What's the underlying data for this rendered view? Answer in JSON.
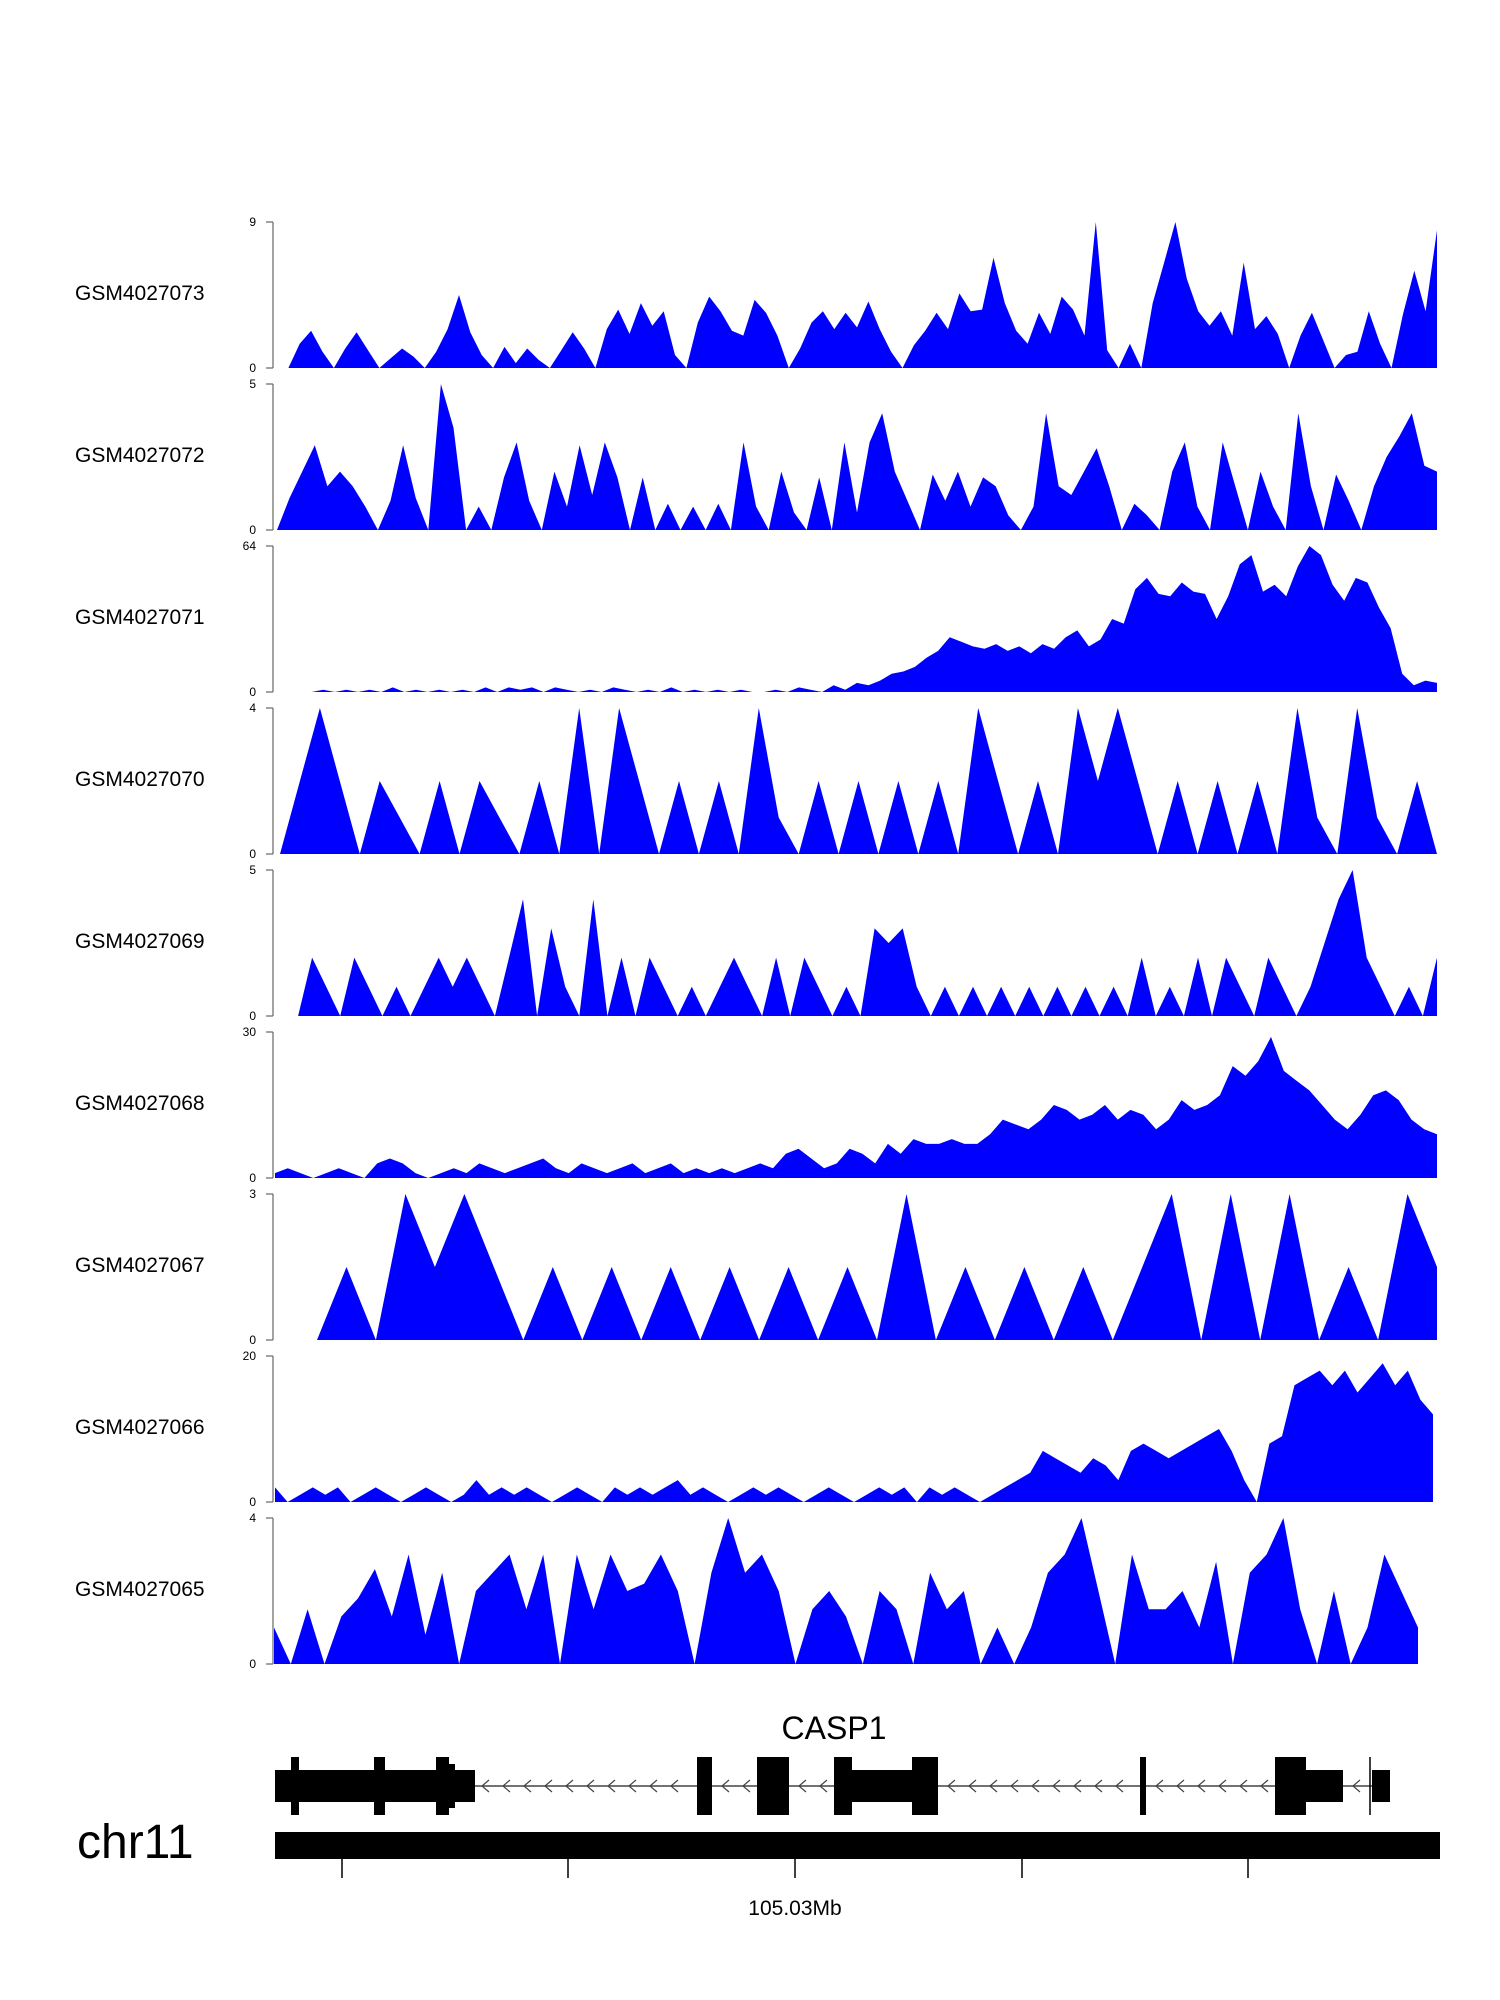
{
  "chart_data": {
    "type": "area",
    "color": "#0000ff",
    "chromosome": "chr11",
    "gene": {
      "name": "CASP1",
      "strand": "-"
    },
    "coordinate_label": "105.03Mb",
    "tracks": [
      {
        "name": "GSM4027073",
        "ymax": 9,
        "ymin": 0,
        "ymax_label": "9",
        "ymin_label": "0",
        "values": [
          0,
          0,
          1.5,
          2.3,
          1.0,
          0,
          1.2,
          2.2,
          1.1,
          0,
          0.6,
          1.2,
          0.7,
          0,
          1.0,
          2.4,
          4.5,
          2.2,
          0.8,
          0,
          1.3,
          0.3,
          1.2,
          0.5,
          0,
          1.1,
          2.2,
          1.2,
          0,
          2.4,
          3.6,
          2.1,
          4.0,
          2.6,
          3.5,
          0.8,
          0,
          2.8,
          4.4,
          3.5,
          2.3,
          2.0,
          4.2,
          3.4,
          2.0,
          0,
          1.2,
          2.8,
          3.5,
          2.4,
          3.4,
          2.5,
          4.1,
          2.4,
          1.0,
          0,
          1.4,
          2.3,
          3.4,
          2.4,
          4.6,
          3.5,
          3.6,
          6.8,
          4.0,
          2.3,
          1.5,
          3.4,
          2.1,
          4.4,
          3.6,
          2.0,
          9.0,
          1.1,
          0,
          1.5,
          0,
          4.0,
          6.5,
          9.0,
          5.5,
          3.5,
          2.6,
          3.5,
          2.0,
          6.5,
          2.4,
          3.2,
          2.1,
          0,
          2.0,
          3.4,
          1.7,
          0,
          0.8,
          1.0,
          3.5,
          1.5,
          0,
          3.3,
          6.0,
          3.5,
          8.5
        ]
      },
      {
        "name": "GSM4027072",
        "ymax": 5,
        "ymin": 0,
        "ymax_label": "5",
        "ymin_label": "0",
        "values": [
          0,
          1.1,
          2.0,
          2.9,
          1.5,
          2.0,
          1.5,
          0.8,
          0,
          1.0,
          2.9,
          1.1,
          0,
          5.0,
          3.5,
          0,
          0.8,
          0,
          1.8,
          3.0,
          1.0,
          0,
          2.0,
          0.8,
          2.9,
          1.2,
          3.0,
          1.8,
          0,
          1.8,
          0,
          0.9,
          0,
          0.8,
          0,
          0.9,
          0,
          3.0,
          0.8,
          0,
          2.0,
          0.6,
          0,
          1.8,
          0,
          3.0,
          0.6,
          3.0,
          4.0,
          2.0,
          1.0,
          0,
          1.9,
          1.0,
          2.0,
          0.8,
          1.8,
          1.5,
          0.5,
          0,
          0.8,
          4.0,
          1.5,
          1.2,
          2.0,
          2.8,
          1.5,
          0,
          0.9,
          0.5,
          0,
          2.0,
          3.0,
          0.8,
          0,
          3.0,
          1.5,
          0,
          2.0,
          0.8,
          0,
          4.0,
          1.5,
          0,
          1.9,
          1.0,
          0,
          1.5,
          2.5,
          3.2,
          4.0,
          2.2,
          2.0
        ]
      },
      {
        "name": "GSM4027071",
        "ymax": 64,
        "ymin": 0,
        "ymax_label": "64",
        "ymin_label": "0",
        "values": [
          0,
          0,
          1,
          0,
          1,
          0,
          1,
          0,
          2,
          0,
          1,
          0,
          1,
          0,
          1,
          0,
          2,
          0,
          2,
          1,
          2,
          0,
          2,
          1,
          0,
          1,
          0,
          2,
          1,
          0,
          1,
          0,
          2,
          0,
          1,
          0,
          1,
          0,
          1,
          0,
          0,
          1,
          0,
          2,
          1,
          0,
          3,
          1,
          4,
          3,
          5,
          8,
          9,
          11,
          15,
          18,
          24,
          22,
          20,
          19,
          21,
          18,
          20,
          17,
          21,
          19,
          24,
          27,
          20,
          23,
          32,
          30,
          45,
          50,
          43,
          42,
          48,
          44,
          43,
          32,
          42,
          56,
          60,
          44,
          47,
          42,
          55,
          64,
          60,
          47,
          40,
          50,
          48,
          37,
          28,
          8,
          3,
          5,
          4
        ]
      },
      {
        "name": "GSM4027070",
        "ymax": 4,
        "ymin": 0,
        "ymax_label": "4",
        "ymin_label": "0",
        "values": [
          0,
          2.0,
          4.0,
          2.0,
          0,
          2.0,
          1.0,
          0,
          2.0,
          0,
          2.0,
          1.0,
          0,
          2.0,
          0,
          4.0,
          0,
          4.0,
          2.0,
          0,
          2.0,
          0,
          2.0,
          0,
          4.0,
          1.0,
          0,
          2.0,
          0,
          2.0,
          0,
          2.0,
          0,
          2.0,
          0,
          4.0,
          2.0,
          0,
          2.0,
          0,
          4.0,
          2.0,
          4.0,
          2.0,
          0,
          2.0,
          0,
          2.0,
          0,
          2.0,
          0,
          4.0,
          1.0,
          0,
          4.0,
          1.0,
          0,
          2.0,
          0
        ]
      },
      {
        "name": "GSM4027069",
        "ymax": 5,
        "ymin": 0,
        "ymax_label": "5",
        "ymin_label": "0",
        "values": [
          0,
          0,
          2.0,
          1.0,
          0,
          2.0,
          1.0,
          0,
          1.0,
          0,
          1.0,
          2.0,
          1.0,
          2.0,
          1.0,
          0,
          2.0,
          4.0,
          0,
          3.0,
          1.0,
          0,
          4.0,
          0,
          2.0,
          0,
          2.0,
          1.0,
          0,
          1.0,
          0,
          1.0,
          2.0,
          1.0,
          0,
          2.0,
          0,
          2.0,
          1.0,
          0,
          1.0,
          0,
          3.0,
          2.5,
          3.0,
          1.0,
          0,
          1.0,
          0,
          1.0,
          0,
          1.0,
          0,
          1.0,
          0,
          1.0,
          0,
          1.0,
          0,
          1.0,
          0,
          2.0,
          0,
          1.0,
          0,
          2.0,
          0,
          2.0,
          1.0,
          0,
          2.0,
          1.0,
          0,
          1.0,
          2.5,
          4.0,
          5.0,
          2.0,
          1.0,
          0,
          1.0,
          0,
          2.0
        ]
      },
      {
        "name": "GSM4027068",
        "ymax": 30,
        "ymin": 0,
        "ymax_label": "30",
        "ymin_label": "0",
        "values": [
          1,
          2,
          1,
          0,
          1,
          2,
          1,
          0,
          3,
          4,
          3,
          1,
          0,
          1,
          2,
          1,
          3,
          2,
          1,
          2,
          3,
          4,
          2,
          1,
          3,
          2,
          1,
          2,
          3,
          1,
          2,
          3,
          1,
          2,
          1,
          2,
          1,
          2,
          3,
          2,
          5,
          6,
          4,
          2,
          3,
          6,
          5,
          3,
          7,
          5,
          8,
          7,
          7,
          8,
          7,
          7,
          9,
          12,
          11,
          10,
          12,
          15,
          14,
          12,
          13,
          15,
          12,
          14,
          13,
          10,
          12,
          16,
          14,
          15,
          17,
          23,
          21,
          24,
          29,
          22,
          20,
          18,
          15,
          12,
          10,
          13,
          17,
          18,
          16,
          12,
          10,
          9
        ]
      },
      {
        "name": "GSM4027067",
        "ymax": 3,
        "ymin": 0,
        "ymax_label": "3",
        "ymin_label": "0",
        "values": [
          0,
          1.5,
          0,
          3.0,
          1.5,
          3.0,
          1.5,
          0,
          1.5,
          0,
          1.5,
          0,
          1.5,
          0,
          1.5,
          0,
          1.5,
          0,
          1.5,
          0,
          3.0,
          0,
          1.5,
          0,
          1.5,
          0,
          1.5,
          0,
          1.5,
          3.0,
          0,
          3.0,
          0,
          3.0,
          0,
          1.5,
          0,
          3.0,
          1.5
        ]
      },
      {
        "name": "GSM4027066",
        "ymax": 20,
        "ymin": 0,
        "ymax_label": "20",
        "ymin_label": "0",
        "values": [
          2,
          0,
          1,
          2,
          1,
          2,
          0,
          1,
          2,
          1,
          0,
          1,
          2,
          1,
          0,
          1,
          3,
          1,
          2,
          1,
          2,
          1,
          0,
          1,
          2,
          1,
          0,
          2,
          1,
          2,
          1,
          2,
          3,
          1,
          2,
          1,
          0,
          1,
          2,
          1,
          2,
          1,
          0,
          1,
          2,
          1,
          0,
          1,
          2,
          1,
          2,
          0,
          2,
          1,
          2,
          1,
          0,
          1,
          2,
          3,
          4,
          7,
          6,
          5,
          4,
          6,
          5,
          3,
          7,
          8,
          7,
          6,
          7,
          8,
          9,
          10,
          7,
          3,
          0,
          8,
          9,
          16,
          17,
          18,
          16,
          18,
          15,
          17,
          19,
          16,
          18,
          14,
          12
        ]
      },
      {
        "name": "GSM4027065",
        "ymax": 4,
        "ymin": 0,
        "ymax_label": "4",
        "ymin_label": "0",
        "values": [
          1.0,
          0,
          1.5,
          0,
          1.3,
          1.8,
          2.6,
          1.3,
          3.0,
          0.8,
          2.5,
          0,
          2.0,
          2.5,
          3.0,
          1.5,
          3.0,
          0,
          3.0,
          1.5,
          3.0,
          2.0,
          2.2,
          3.0,
          2.0,
          0,
          2.5,
          4.0,
          2.5,
          3.0,
          2.0,
          0,
          1.5,
          2.0,
          1.3,
          0,
          2.0,
          1.5,
          0,
          2.5,
          1.5,
          2.0,
          0,
          1.0,
          0,
          1.0,
          2.5,
          3.0,
          4.0,
          2.0,
          0,
          3.0,
          1.5,
          1.5,
          2.0,
          1.0,
          2.8,
          0,
          2.5,
          3.0,
          4.0,
          1.5,
          0,
          2.0,
          0,
          1.0,
          3.0,
          2.0,
          1.0
        ]
      }
    ]
  }
}
